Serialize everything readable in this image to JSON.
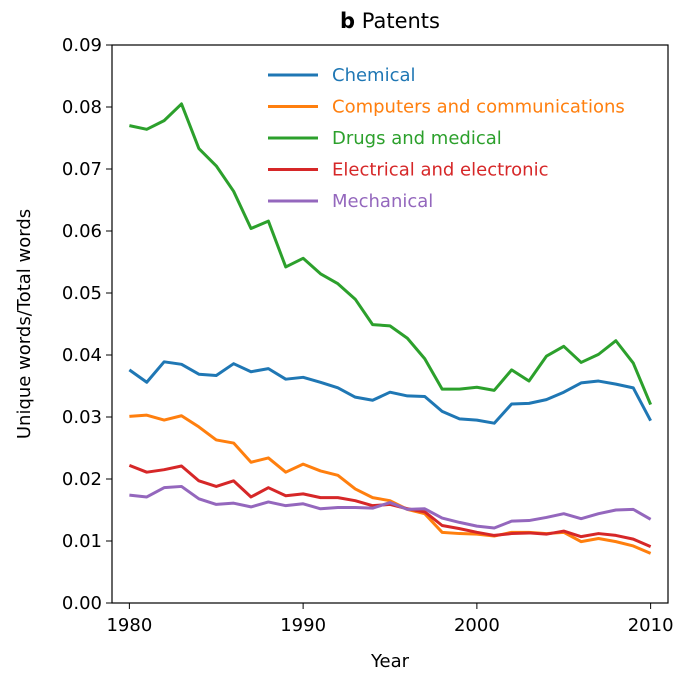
{
  "chart_data": {
    "type": "line",
    "panel_label": "b",
    "title": "Patents",
    "xlabel": "Year",
    "ylabel": "Unique words/Total words",
    "x": [
      1980,
      1981,
      1982,
      1983,
      1984,
      1985,
      1986,
      1987,
      1988,
      1989,
      1990,
      1991,
      1992,
      1993,
      1994,
      1995,
      1996,
      1997,
      1998,
      1999,
      2000,
      2001,
      2002,
      2003,
      2004,
      2005,
      2006,
      2007,
      2008,
      2009,
      2010
    ],
    "series": [
      {
        "name": "Chemical",
        "color": "#1f77b4",
        "values": [
          0.0376,
          0.0356,
          0.0389,
          0.0385,
          0.0369,
          0.0367,
          0.0386,
          0.0373,
          0.0378,
          0.0361,
          0.0364,
          0.0356,
          0.0347,
          0.0332,
          0.0327,
          0.034,
          0.0334,
          0.0333,
          0.0309,
          0.0297,
          0.0295,
          0.029,
          0.0321,
          0.0322,
          0.0328,
          0.034,
          0.0355,
          0.0358,
          0.0353,
          0.0347,
          0.0294
        ]
      },
      {
        "name": "Computers and communications",
        "color": "#ff7f0e",
        "values": [
          0.0301,
          0.0303,
          0.0295,
          0.0302,
          0.0284,
          0.0263,
          0.0258,
          0.0227,
          0.0234,
          0.0211,
          0.0224,
          0.0213,
          0.0206,
          0.0184,
          0.017,
          0.0165,
          0.0151,
          0.0144,
          0.0114,
          0.0112,
          0.0111,
          0.0108,
          0.0114,
          0.0114,
          0.0112,
          0.0114,
          0.0099,
          0.0104,
          0.0099,
          0.0092,
          0.008
        ]
      },
      {
        "name": "Drugs and medical",
        "color": "#2ca02c",
        "values": [
          0.077,
          0.0764,
          0.0778,
          0.0805,
          0.0733,
          0.0705,
          0.0664,
          0.0604,
          0.0616,
          0.0542,
          0.0556,
          0.0531,
          0.0515,
          0.049,
          0.0449,
          0.0447,
          0.0427,
          0.0394,
          0.0345,
          0.0345,
          0.0348,
          0.0343,
          0.0376,
          0.0358,
          0.0398,
          0.0414,
          0.0388,
          0.0401,
          0.0423,
          0.0387,
          0.032
        ]
      },
      {
        "name": "Electrical and electronic",
        "color": "#d62728",
        "values": [
          0.0222,
          0.0211,
          0.0215,
          0.0221,
          0.0197,
          0.0188,
          0.0197,
          0.0171,
          0.0186,
          0.0173,
          0.0176,
          0.017,
          0.017,
          0.0165,
          0.0157,
          0.0159,
          0.0152,
          0.0147,
          0.0125,
          0.012,
          0.0114,
          0.0109,
          0.0112,
          0.0113,
          0.0111,
          0.0116,
          0.0107,
          0.0112,
          0.0109,
          0.0103,
          0.0091
        ]
      },
      {
        "name": "Mechanical",
        "color": "#9467bd",
        "values": [
          0.0174,
          0.0171,
          0.0186,
          0.0188,
          0.0168,
          0.0159,
          0.0161,
          0.0155,
          0.0163,
          0.0157,
          0.016,
          0.0152,
          0.0154,
          0.0154,
          0.0153,
          0.0162,
          0.0151,
          0.0152,
          0.0137,
          0.013,
          0.0124,
          0.0121,
          0.0132,
          0.0133,
          0.0138,
          0.0144,
          0.0136,
          0.0144,
          0.015,
          0.0151,
          0.0135
        ]
      }
    ],
    "xlim": [
      1979,
      2011
    ],
    "xticks": [
      1980,
      1990,
      2000,
      2010
    ],
    "ylim": [
      0,
      0.09
    ],
    "yticks": [
      {
        "value": 0,
        "label": "0.00"
      },
      0.01,
      0.02,
      0.03,
      0.04,
      0.05,
      0.06,
      0.07,
      0.08,
      0.09
    ],
    "legend": "upper center",
    "grid": false
  }
}
